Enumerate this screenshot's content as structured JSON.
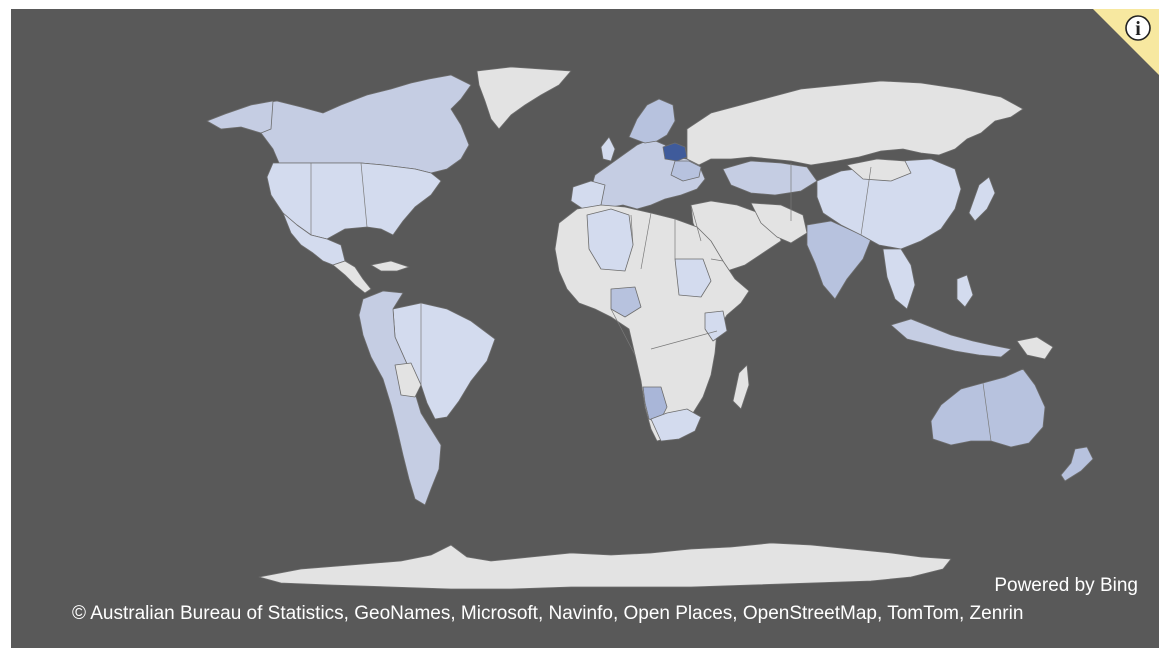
{
  "map": {
    "title": "Filled world map",
    "highlight_color": "#3f5b9b",
    "shade_colors": [
      "#a9b6d8",
      "#b7c2de",
      "#c5cde3",
      "#d3dbee",
      "#e3e3e3"
    ],
    "background_color": "#595959"
  },
  "info": {
    "icon": "info-icon",
    "label": "i"
  },
  "footer": {
    "powered_by": "Powered by Bing",
    "copyright": "© Australian Bureau of Statistics, GeoNames, Microsoft, Navinfo, Open Places, OpenStreetMap, TomTom, Zenrin"
  }
}
